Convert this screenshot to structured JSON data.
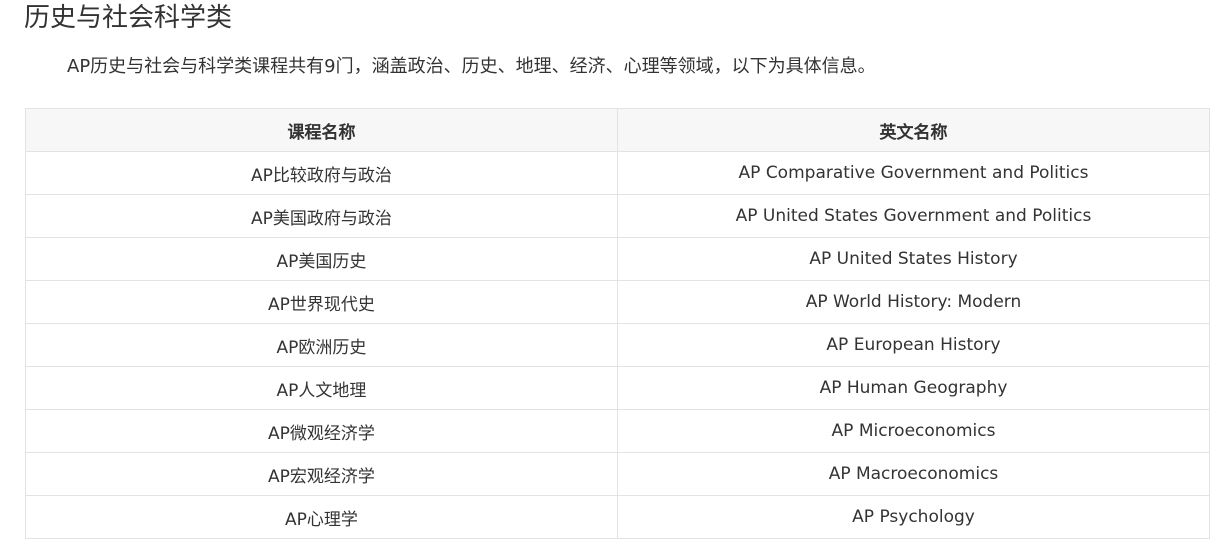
{
  "section": {
    "title": "历史与社会科学类",
    "intro": "AP历史与社会与科学类课程共有9门，涵盖政治、历史、地理、经济、心理等领域，以下为具体信息。"
  },
  "table": {
    "headers": [
      "课程名称",
      "英文名称"
    ],
    "rows": [
      [
        "AP比较政府与政治",
        "AP Comparative Government and Politics"
      ],
      [
        "AP美国政府与政治",
        "AP United States Government and Politics"
      ],
      [
        "AP美国历史",
        "AP United States History"
      ],
      [
        "AP世界现代史",
        "AP World History: Modern"
      ],
      [
        "AP欧洲历史",
        "AP European History"
      ],
      [
        "AP人文地理",
        "AP Human Geography"
      ],
      [
        "AP微观经济学",
        "AP Microeconomics"
      ],
      [
        "AP宏观经济学",
        "AP Macroeconomics"
      ],
      [
        "AP心理学",
        "AP Psychology"
      ]
    ]
  }
}
